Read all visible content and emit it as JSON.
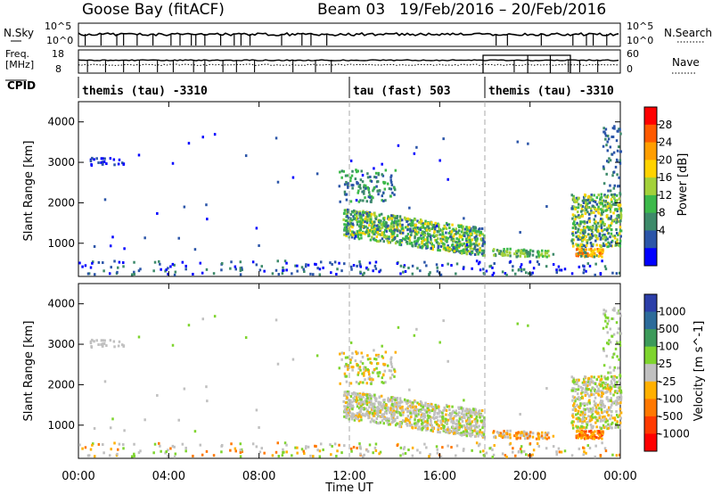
{
  "chart_data": {
    "type": "heatmap",
    "header": {
      "station": "Goose Bay (fitACF)",
      "beam": "Beam 03",
      "dates": "19/Feb/2016 – 20/Feb/2016"
    },
    "noise_panel": {
      "left_label": "N.Sky",
      "right_label": "N.Search",
      "left_ticks": [
        "10^5",
        "10^0"
      ],
      "right_ticks": [
        "10^5",
        "10^0"
      ]
    },
    "freq_panel": {
      "left_label": "Freq.\n[MHz]",
      "left_label_line1": "Freq.",
      "left_label_line2": "[MHz]",
      "right_label": "Nave",
      "left_ticks": [
        "18",
        "8"
      ],
      "right_ticks": [
        "60",
        "0"
      ]
    },
    "cpid": {
      "label": "CPID",
      "segments": [
        {
          "name": "themis (tau) -3310",
          "start_hour": 0
        },
        {
          "name": "tau (fast) 503",
          "start_hour": 12
        },
        {
          "name": "themis (tau) -3310",
          "start_hour": 18
        }
      ]
    },
    "x_axis": {
      "label": "Time UT",
      "range_hours": [
        0,
        24
      ],
      "ticks": [
        {
          "hour": 0,
          "label": "00:00"
        },
        {
          "hour": 4,
          "label": "04:00"
        },
        {
          "hour": 8,
          "label": "08:00"
        },
        {
          "hour": 12,
          "label": "12:00"
        },
        {
          "hour": 16,
          "label": "16:00"
        },
        {
          "hour": 20,
          "label": "20:00"
        },
        {
          "hour": 24,
          "label": "00:00"
        }
      ],
      "dashed_markers_hours": [
        12,
        18
      ]
    },
    "y_axis": {
      "label": "Slant Range [km]",
      "range_km": [
        180,
        4500
      ],
      "ticks": [
        1000,
        2000,
        3000,
        4000
      ]
    },
    "power_panel": {
      "colorbar_label": "Power [dB]",
      "ticks": [
        "28",
        "24",
        "20",
        "16",
        "12",
        "8",
        "4"
      ],
      "colors": [
        "#ff0000",
        "#ff5a00",
        "#ff9e00",
        "#ffd300",
        "#a3d13a",
        "#3cb94a",
        "#3d8a6a",
        "#2b55a8",
        "#0000ff"
      ]
    },
    "velocity_panel": {
      "colorbar_label": "Velocity [m s^-1]",
      "ticks": [
        "1000",
        "500",
        "100",
        "25",
        "-25",
        "-100",
        "-500",
        "-1000"
      ],
      "colors": [
        "#2b3ea8",
        "#2c6b9a",
        "#3c9a5a",
        "#7ed42e",
        "#c0c0c0",
        "#ffb000",
        "#ff7800",
        "#ff3a00",
        "#ff0000"
      ]
    },
    "echo_regions": [
      {
        "t": [
          11.7,
          18.0
        ],
        "r": [
          800,
          1900
        ],
        "power": "mixed"
      },
      {
        "t": [
          21.8,
          24.0
        ],
        "r": [
          600,
          3500
        ],
        "power": "mixed"
      },
      {
        "t": [
          18.3,
          21.0
        ],
        "r": [
          600,
          900
        ],
        "power": "low"
      },
      {
        "t": [
          0.0,
          24.0
        ],
        "r": [
          180,
          600
        ],
        "power": "low"
      }
    ]
  }
}
